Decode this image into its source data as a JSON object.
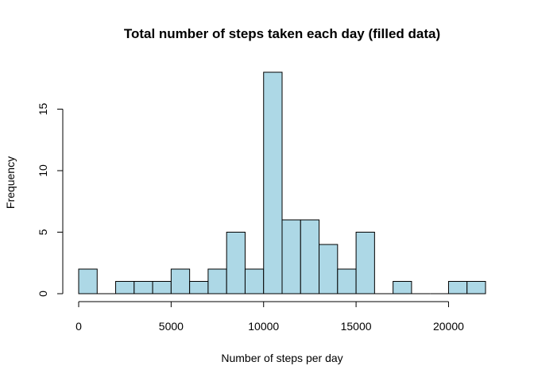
{
  "chart_data": {
    "type": "bar",
    "subtype": "histogram",
    "title": "Total number of steps taken each day (filled data)",
    "xlabel": "Number of steps per day",
    "ylabel": "Frequency",
    "bar_color": "#add8e6",
    "edge_color": "#000000",
    "bin_width": 1000,
    "bins": [
      {
        "x0": 0,
        "x1": 1000,
        "count": 2
      },
      {
        "x0": 1000,
        "x1": 2000,
        "count": 0
      },
      {
        "x0": 2000,
        "x1": 3000,
        "count": 1
      },
      {
        "x0": 3000,
        "x1": 4000,
        "count": 1
      },
      {
        "x0": 4000,
        "x1": 5000,
        "count": 1
      },
      {
        "x0": 5000,
        "x1": 6000,
        "count": 2
      },
      {
        "x0": 6000,
        "x1": 7000,
        "count": 1
      },
      {
        "x0": 7000,
        "x1": 8000,
        "count": 2
      },
      {
        "x0": 8000,
        "x1": 9000,
        "count": 5
      },
      {
        "x0": 9000,
        "x1": 10000,
        "count": 2
      },
      {
        "x0": 10000,
        "x1": 11000,
        "count": 18
      },
      {
        "x0": 11000,
        "x1": 12000,
        "count": 6
      },
      {
        "x0": 12000,
        "x1": 13000,
        "count": 6
      },
      {
        "x0": 13000,
        "x1": 14000,
        "count": 4
      },
      {
        "x0": 14000,
        "x1": 15000,
        "count": 2
      },
      {
        "x0": 15000,
        "x1": 16000,
        "count": 5
      },
      {
        "x0": 16000,
        "x1": 17000,
        "count": 0
      },
      {
        "x0": 17000,
        "x1": 18000,
        "count": 1
      },
      {
        "x0": 18000,
        "x1": 19000,
        "count": 0
      },
      {
        "x0": 19000,
        "x1": 20000,
        "count": 0
      },
      {
        "x0": 20000,
        "x1": 21000,
        "count": 1
      },
      {
        "x0": 21000,
        "x1": 22000,
        "count": 1
      }
    ],
    "xlim": [
      0,
      22000
    ],
    "ylim": [
      0,
      18
    ],
    "x_ticks": [
      0,
      5000,
      10000,
      15000,
      20000
    ],
    "x_tick_labels": [
      "0",
      "5000",
      "10000",
      "15000",
      "20000"
    ],
    "y_ticks": [
      0,
      5,
      10,
      15
    ],
    "y_tick_labels": [
      "0",
      "5",
      "10",
      "15"
    ],
    "grid": false,
    "legend": "none"
  }
}
